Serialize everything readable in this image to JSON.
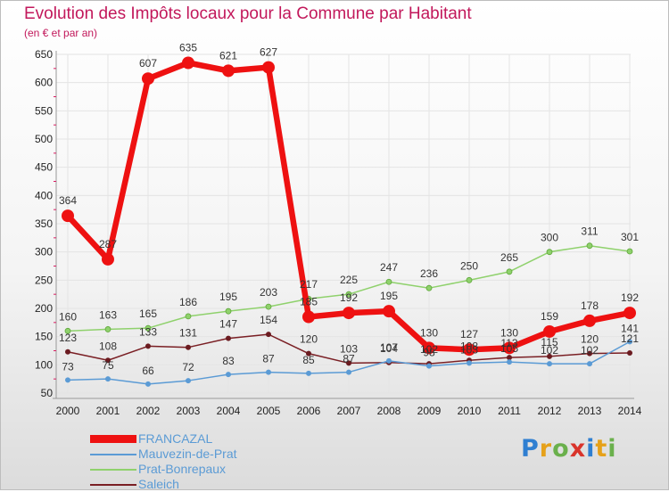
{
  "title": "Evolution des Impôts locaux pour la Commune par Habitant",
  "subtitle": "(en € et par an)",
  "logo": "Proxiti",
  "chart_data": {
    "type": "line",
    "title": "Evolution des Impôts locaux pour la Commune par Habitant",
    "subtitle": "(en € et par an)",
    "x": [
      2000,
      2001,
      2002,
      2003,
      2004,
      2005,
      2006,
      2007,
      2008,
      2009,
      2010,
      2011,
      2012,
      2013,
      2014
    ],
    "ylim": [
      50,
      650
    ],
    "yticks": [
      50,
      100,
      150,
      200,
      250,
      300,
      350,
      400,
      450,
      500,
      550,
      600,
      650
    ],
    "grid": true,
    "legend": "bottom-left",
    "series": [
      {
        "name": "FRANCAZAL",
        "color": "#ee1111",
        "values": [
          364,
          287,
          607,
          635,
          621,
          627,
          185,
          192,
          195,
          130,
          127,
          130,
          159,
          178,
          192
        ]
      },
      {
        "name": "Mauvezin-de-Prat",
        "color": "#5b9bd5",
        "values": [
          73,
          75,
          66,
          72,
          83,
          87,
          85,
          87,
          107,
          98,
          103,
          105,
          102,
          102,
          141
        ]
      },
      {
        "name": "Prat-Bonrepaux",
        "color": "#8fd16c",
        "values": [
          160,
          163,
          165,
          186,
          195,
          203,
          217,
          225,
          247,
          236,
          250,
          265,
          300,
          311,
          301
        ]
      },
      {
        "name": "Saleich",
        "color": "#7a1f24",
        "values": [
          123,
          108,
          133,
          131,
          147,
          154,
          120,
          103,
          104,
          102,
          108,
          113,
          115,
          120,
          121
        ]
      }
    ]
  }
}
